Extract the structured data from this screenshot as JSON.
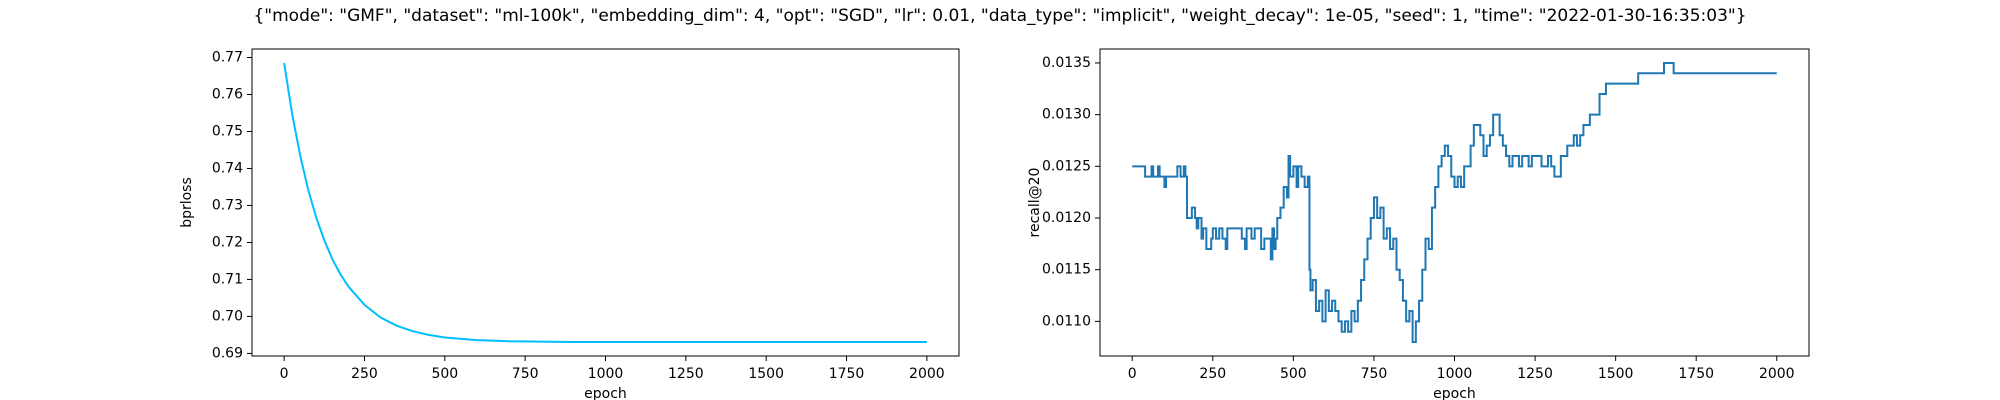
{
  "title": "{\"mode\": \"GMF\", \"dataset\": \"ml-100k\", \"embedding_dim\": 4, \"opt\": \"SGD\", \"lr\": 0.01, \"data_type\": \"implicit\", \"weight_decay\": 1e-05, \"seed\": 1, \"time\": \"2022-01-30-16:35:03\"}",
  "chart_data": [
    {
      "type": "line",
      "xlabel": "epoch",
      "ylabel": "bprloss",
      "color": "#00bfff",
      "drawstyle": "default",
      "x": [
        0,
        25,
        50,
        75,
        100,
        125,
        150,
        175,
        200,
        250,
        300,
        350,
        400,
        450,
        500,
        600,
        700,
        800,
        900,
        1000,
        1200,
        1400,
        1600,
        1800,
        2000
      ],
      "values": [
        0.7685,
        0.7547,
        0.7435,
        0.7342,
        0.7267,
        0.7206,
        0.7155,
        0.7114,
        0.7081,
        0.7031,
        0.6997,
        0.6975,
        0.696,
        0.695,
        0.6943,
        0.6936,
        0.6933,
        0.6932,
        0.6931,
        0.6931,
        0.6931,
        0.6931,
        0.6931,
        0.6931,
        0.6931
      ],
      "xlim": [
        -100,
        2100
      ],
      "xticks": [
        0,
        250,
        500,
        750,
        1000,
        1250,
        1500,
        1750,
        2000
      ],
      "ylim": [
        0.6893,
        0.7723
      ],
      "yticks": [
        {
          "value": 0.69,
          "label": "0.69"
        },
        {
          "value": 0.7,
          "label": "0.70"
        },
        0.71,
        0.72,
        0.73,
        0.74,
        0.75,
        0.76,
        0.77
      ]
    },
    {
      "type": "line",
      "xlabel": "epoch",
      "ylabel": "recall@20",
      "color": "#1f77b4",
      "drawstyle": "steps-post",
      "x": [
        0,
        40,
        60,
        65,
        80,
        85,
        100,
        105,
        140,
        150,
        160,
        165,
        170,
        185,
        195,
        200,
        205,
        215,
        220,
        230,
        245,
        250,
        260,
        270,
        280,
        290,
        295,
        340,
        350,
        355,
        370,
        380,
        400,
        410,
        430,
        435,
        440,
        445,
        450,
        460,
        470,
        480,
        485,
        490,
        500,
        510,
        515,
        525,
        535,
        545,
        550,
        553,
        560,
        570,
        580,
        590,
        600,
        610,
        620,
        630,
        640,
        650,
        660,
        670,
        680,
        690,
        700,
        710,
        720,
        730,
        740,
        750,
        760,
        770,
        780,
        790,
        800,
        810,
        820,
        830,
        840,
        850,
        860,
        870,
        880,
        890,
        900,
        910,
        920,
        930,
        940,
        950,
        960,
        970,
        980,
        990,
        1000,
        1010,
        1020,
        1030,
        1050,
        1060,
        1080,
        1090,
        1100,
        1110,
        1120,
        1140,
        1150,
        1160,
        1170,
        1180,
        1200,
        1210,
        1230,
        1240,
        1270,
        1290,
        1300,
        1310,
        1330,
        1350,
        1370,
        1380,
        1390,
        1400,
        1420,
        1450,
        1470,
        1570,
        1650,
        1680,
        2000
      ],
      "values": [
        0.0125,
        0.0124,
        0.0125,
        0.0124,
        0.0125,
        0.0124,
        0.0123,
        0.0124,
        0.0125,
        0.0124,
        0.0125,
        0.0124,
        0.012,
        0.0121,
        0.012,
        0.0119,
        0.012,
        0.0118,
        0.0119,
        0.0117,
        0.0118,
        0.0119,
        0.0118,
        0.0119,
        0.0118,
        0.0117,
        0.0119,
        0.0118,
        0.0117,
        0.0119,
        0.0118,
        0.0119,
        0.0117,
        0.0118,
        0.0116,
        0.0119,
        0.0117,
        0.0118,
        0.012,
        0.0121,
        0.0123,
        0.0122,
        0.0126,
        0.0124,
        0.0125,
        0.0123,
        0.0125,
        0.0124,
        0.0123,
        0.0124,
        0.0115,
        0.0113,
        0.0114,
        0.0111,
        0.0112,
        0.011,
        0.0113,
        0.0111,
        0.0112,
        0.0111,
        0.011,
        0.0109,
        0.011,
        0.0109,
        0.0111,
        0.011,
        0.0112,
        0.0114,
        0.0116,
        0.0118,
        0.012,
        0.0122,
        0.012,
        0.0121,
        0.0118,
        0.0119,
        0.0117,
        0.0118,
        0.0115,
        0.0114,
        0.0112,
        0.011,
        0.0111,
        0.0108,
        0.011,
        0.0112,
        0.0115,
        0.0118,
        0.0117,
        0.0121,
        0.0123,
        0.0125,
        0.0126,
        0.0127,
        0.0126,
        0.0124,
        0.0123,
        0.0124,
        0.0123,
        0.0125,
        0.0127,
        0.0129,
        0.0128,
        0.0126,
        0.0127,
        0.0128,
        0.013,
        0.0128,
        0.0127,
        0.0126,
        0.0125,
        0.0126,
        0.0125,
        0.0126,
        0.0125,
        0.0126,
        0.0125,
        0.0126,
        0.0125,
        0.0124,
        0.0126,
        0.0127,
        0.0128,
        0.0127,
        0.0128,
        0.0129,
        0.013,
        0.0132,
        0.0133,
        0.0134,
        0.0135,
        0.0134,
        0.0134
      ],
      "xlim": [
        -100,
        2100
      ],
      "xticks": [
        0,
        250,
        500,
        750,
        1000,
        1250,
        1500,
        1750,
        2000
      ],
      "ylim": [
        0.010665,
        0.013635
      ],
      "yticks": [
        {
          "value": 0.011,
          "label": "0.0110"
        },
        0.0115,
        {
          "value": 0.012,
          "label": "0.0120"
        },
        0.0125,
        {
          "value": 0.013,
          "label": "0.0130"
        },
        0.0135
      ]
    }
  ]
}
